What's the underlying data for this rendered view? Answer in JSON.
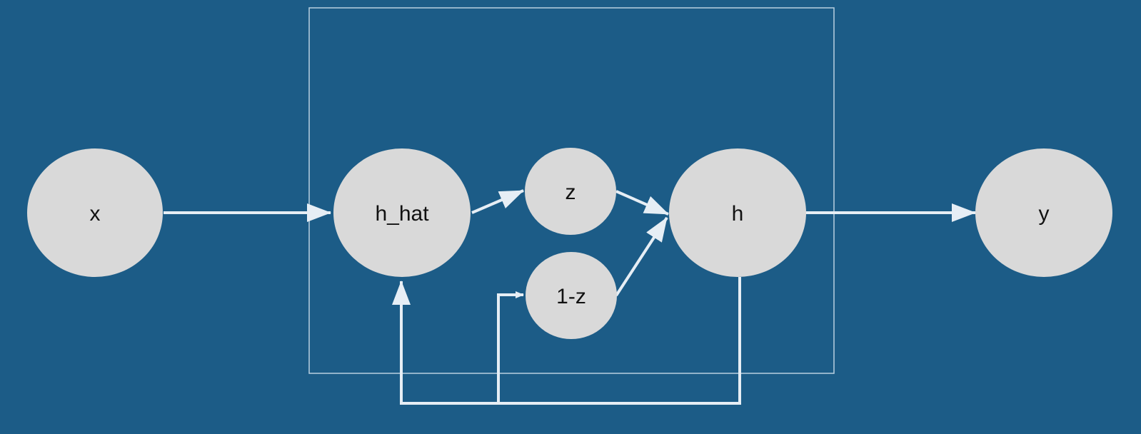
{
  "colors": {
    "background": "#1c5c87",
    "node_fill": "#d9d9d9",
    "edge": "#e6eef5",
    "frame": "#b9d0e0",
    "label": "#111111"
  },
  "nodes": {
    "x": "x",
    "h_hat": "h_hat",
    "z": "z",
    "one_minus_z": "1-z",
    "h": "h",
    "y": "y"
  }
}
